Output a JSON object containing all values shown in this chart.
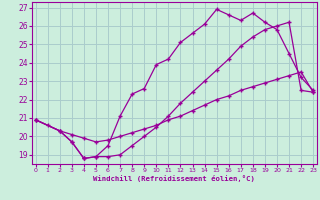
{
  "xlabel": "Windchill (Refroidissement éolien,°C)",
  "line_color": "#990099",
  "bg_color": "#cceedd",
  "grid_color": "#aacccc",
  "xlim": [
    -0.3,
    23.3
  ],
  "ylim": [
    18.5,
    27.3
  ],
  "xticks": [
    0,
    1,
    2,
    3,
    4,
    5,
    6,
    7,
    8,
    9,
    10,
    11,
    12,
    13,
    14,
    15,
    16,
    17,
    18,
    19,
    20,
    21,
    22,
    23
  ],
  "yticks": [
    19,
    20,
    21,
    22,
    23,
    24,
    25,
    26,
    27
  ],
  "line1_x": [
    0,
    1,
    2,
    3,
    4,
    5,
    6,
    7,
    8,
    9,
    10,
    11,
    12,
    13,
    14,
    15,
    16,
    17,
    18,
    19,
    20,
    21,
    22,
    23
  ],
  "line1_y": [
    20.9,
    20.6,
    20.3,
    20.1,
    19.9,
    19.7,
    19.8,
    20.0,
    20.2,
    20.4,
    20.6,
    20.9,
    21.1,
    21.4,
    21.7,
    22.0,
    22.2,
    22.5,
    22.7,
    22.9,
    23.1,
    23.3,
    23.5,
    22.4
  ],
  "line2_x": [
    0,
    2,
    3,
    4,
    5,
    6,
    7,
    8,
    9,
    10,
    11,
    12,
    13,
    14,
    15,
    16,
    17,
    18,
    19,
    20,
    21,
    22,
    23
  ],
  "line2_y": [
    20.9,
    20.3,
    19.7,
    18.8,
    18.9,
    19.5,
    21.1,
    22.3,
    22.6,
    23.9,
    24.2,
    25.1,
    25.6,
    26.1,
    26.9,
    26.6,
    26.3,
    26.7,
    26.2,
    25.8,
    24.5,
    23.2,
    22.5
  ],
  "line3_x": [
    0,
    2,
    3,
    4,
    4,
    5,
    6,
    7,
    8,
    9,
    10,
    11,
    12,
    13,
    14,
    15,
    16,
    17,
    18,
    19,
    20,
    21,
    22,
    23
  ],
  "line3_y": [
    20.9,
    20.3,
    19.7,
    18.8,
    18.8,
    18.9,
    18.9,
    19.0,
    19.5,
    20.0,
    20.5,
    21.1,
    21.8,
    22.4,
    23.0,
    23.6,
    24.2,
    24.9,
    25.4,
    25.8,
    26.0,
    26.2,
    22.5,
    22.4
  ]
}
